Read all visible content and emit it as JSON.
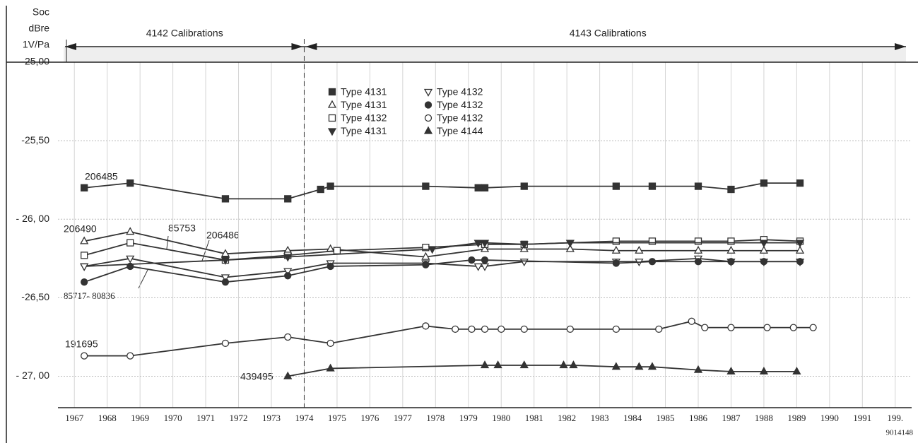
{
  "chart_data": {
    "type": "line",
    "ylabel_lines": [
      "Soc",
      "dBre",
      "1V/Pa"
    ],
    "xlim": [
      1966.5,
      1992.5
    ],
    "ylim": [
      -27.2,
      -25.0
    ],
    "xticks": [
      1967,
      1968,
      1969,
      1970,
      1971,
      1972,
      1973,
      1974,
      1975,
      1976,
      1977,
      1978,
      1979,
      1980,
      1981,
      1982,
      1983,
      1984,
      1985,
      1986,
      1987,
      1988,
      1989,
      1990,
      1991,
      {
        "value": 1992,
        "label": "199."
      }
    ],
    "yticks": [
      {
        "value": -25.0,
        "label": "-25,00"
      },
      {
        "value": -25.5,
        "label": "-25,50"
      },
      {
        "value": -26.0,
        "label": "- 26, 00"
      },
      {
        "value": -26.5,
        "label": "-26,50"
      },
      {
        "value": -27.0,
        "label": "- 27, 00"
      }
    ],
    "grid": true,
    "calibration_split": 1974,
    "calibrations": [
      "4142 Calibrations",
      "4143 Calibrations"
    ],
    "annotations": [
      "206485",
      "206490",
      "85753",
      "206486",
      "85717- 80836",
      "191695",
      "439495",
      "9014148"
    ],
    "series": [
      {
        "name": "Type 4131",
        "marker": "square-filled",
        "color": "#333333",
        "x": [
          1967.3,
          1968.7,
          1971.6,
          1973.5,
          1974.5,
          1974.8,
          1977.7,
          1979.3,
          1979.5,
          1980.7,
          1983.5,
          1984.6,
          1986.0,
          1987.0,
          1988.0,
          1989.1
        ],
        "values": [
          -25.8,
          -25.77,
          -25.87,
          -25.87,
          -25.81,
          -25.79,
          -25.79,
          -25.8,
          -25.8,
          -25.79,
          -25.79,
          -25.79,
          -25.79,
          -25.81,
          -25.77,
          -25.77
        ]
      },
      {
        "name": "Type 4131",
        "marker": "triangle-open",
        "color": "#333333",
        "x": [
          1967.3,
          1968.7,
          1971.6,
          1973.5,
          1974.8,
          1977.7,
          1979.5,
          1980.7,
          1982.1,
          1983.5,
          1984.2,
          1986.0,
          1987.0,
          1988.0,
          1989.1
        ],
        "values": [
          -26.14,
          -26.08,
          -26.22,
          -26.2,
          -26.19,
          -26.24,
          -26.19,
          -26.19,
          -26.19,
          -26.2,
          -26.2,
          -26.2,
          -26.2,
          -26.2,
          -26.2
        ]
      },
      {
        "name": "Type 4132",
        "marker": "square-open",
        "color": "#333333",
        "x": [
          1967.3,
          1968.7,
          1971.6,
          1973.5,
          1975.0,
          1977.7,
          1979.5,
          1980.7,
          1983.5,
          1984.6,
          1986.0,
          1987.0,
          1988.0,
          1989.1
        ],
        "values": [
          -26.23,
          -26.15,
          -26.26,
          -26.23,
          -26.2,
          -26.18,
          -26.16,
          -26.16,
          -26.14,
          -26.14,
          -26.14,
          -26.14,
          -26.13,
          -26.14
        ]
      },
      {
        "name": "Type 4131",
        "marker": "triangle-down-filled",
        "color": "#333333",
        "x": [
          1967.3,
          1971.6,
          1973.5,
          1977.9,
          1979.3,
          1979.5,
          1980.7,
          1982.1,
          1988.0,
          1989.1
        ],
        "values": [
          -26.3,
          -26.26,
          -26.24,
          -26.19,
          -26.15,
          -26.15,
          -26.16,
          -26.15,
          -26.15,
          -26.15
        ]
      },
      {
        "name": "Type 4132",
        "marker": "triangle-down-open",
        "color": "#333333",
        "x": [
          1967.3,
          1968.7,
          1971.6,
          1973.5,
          1974.8,
          1977.7,
          1979.3,
          1979.5,
          1980.7,
          1983.5,
          1984.2,
          1986.0,
          1987.0,
          1988.0,
          1989.1
        ],
        "values": [
          -26.3,
          -26.25,
          -26.37,
          -26.33,
          -26.28,
          -26.28,
          -26.3,
          -26.3,
          -26.27,
          -26.27,
          -26.27,
          -26.25,
          -26.27,
          -26.27,
          -26.27
        ]
      },
      {
        "name": "Type 4132",
        "marker": "circle-filled",
        "color": "#333333",
        "x": [
          1967.3,
          1968.7,
          1971.6,
          1973.5,
          1974.8,
          1977.7,
          1979.1,
          1979.5,
          1983.5,
          1984.6,
          1986.0,
          1987.0,
          1988.0,
          1989.1
        ],
        "values": [
          -26.4,
          -26.3,
          -26.4,
          -26.36,
          -26.3,
          -26.29,
          -26.26,
          -26.26,
          -26.28,
          -26.27,
          -26.27,
          -26.27,
          -26.27,
          -26.27
        ]
      },
      {
        "name": "Type 4132",
        "marker": "circle-open",
        "color": "#333333",
        "x": [
          1967.3,
          1968.7,
          1971.6,
          1973.5,
          1974.8,
          1977.7,
          1978.6,
          1979.1,
          1979.5,
          1980.0,
          1980.7,
          1982.1,
          1983.5,
          1984.8,
          1985.8,
          1986.2,
          1987.0,
          1988.1,
          1988.9,
          1989.5
        ],
        "values": [
          -26.87,
          -26.87,
          -26.79,
          -26.75,
          -26.79,
          -26.68,
          -26.7,
          -26.7,
          -26.7,
          -26.7,
          -26.7,
          -26.7,
          -26.7,
          -26.7,
          -26.65,
          -26.69,
          -26.69,
          -26.69,
          -26.69,
          -26.69
        ]
      },
      {
        "name": "Type 4144",
        "marker": "triangle-filled",
        "color": "#333333",
        "x": [
          1973.5,
          1974.8,
          1979.5,
          1979.9,
          1980.7,
          1981.9,
          1982.2,
          1983.5,
          1984.2,
          1984.6,
          1986.0,
          1987.0,
          1988.0,
          1989.0
        ],
        "values": [
          -27.0,
          -26.95,
          -26.93,
          -26.93,
          -26.93,
          -26.93,
          -26.93,
          -26.94,
          -26.94,
          -26.94,
          -26.96,
          -26.97,
          -26.97,
          -26.97
        ]
      }
    ]
  }
}
